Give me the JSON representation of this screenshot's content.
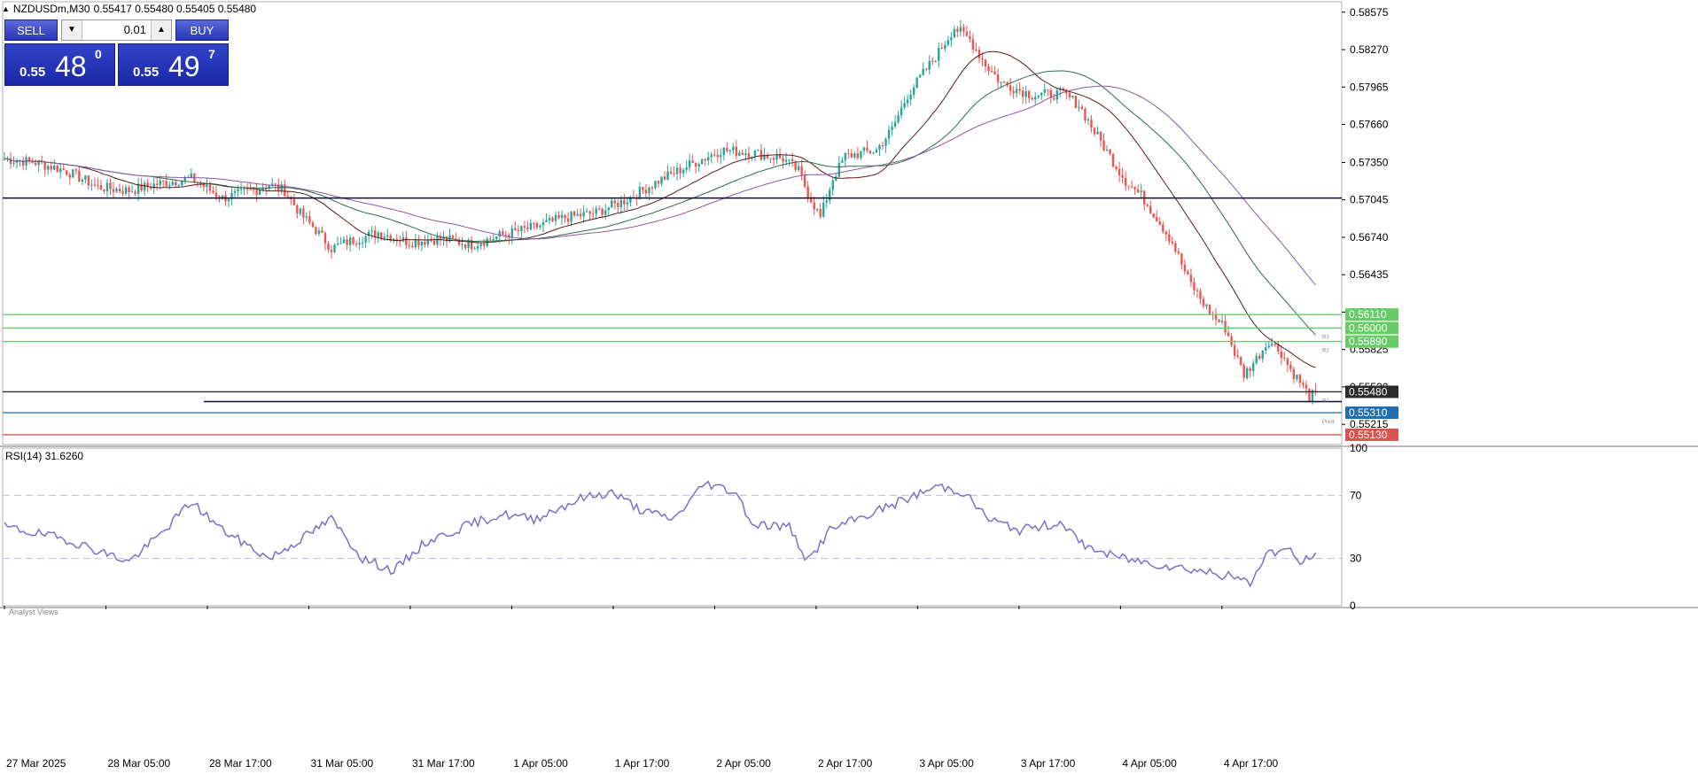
{
  "header": {
    "symbol": "NZDUSDm,M30",
    "ohlc": "0.55417 0.55480 0.55405 0.55480"
  },
  "trade_panel": {
    "sell_label": "SELL",
    "buy_label": "BUY",
    "lot": "0.01",
    "sell_price_small": "0.55",
    "sell_price_big": "48",
    "sell_price_sup": "0",
    "buy_price_small": "0.55",
    "buy_price_big": "49",
    "buy_price_sup": "7"
  },
  "price_axis": {
    "ticks": [
      "0.58575",
      "0.58270",
      "0.57965",
      "0.57660",
      "0.57350",
      "0.57045",
      "0.56740",
      "0.56435",
      "0.56130",
      "0.55825",
      "0.55520",
      "0.55215"
    ],
    "ylim": [
      0.5505,
      0.5866
    ]
  },
  "levels": [
    {
      "price": 0.5611,
      "label": "0.56110",
      "color": "#66cc66",
      "small_label": ""
    },
    {
      "price": 0.56,
      "label": "0.56000",
      "color": "#66cc66",
      "small_label": "R3"
    },
    {
      "price": 0.5589,
      "label": "0.55890",
      "color": "#66cc66",
      "small_label": "R2"
    },
    {
      "price": 0.5548,
      "label": "0.55480",
      "color": "#2b2b2b",
      "small_label": "R1"
    },
    {
      "price": 0.5531,
      "label": "0.55310",
      "color": "#1f6fb2",
      "small_label": "Pivot"
    },
    {
      "price": 0.5513,
      "label": "0.55130",
      "color": "#d9534f",
      "small_label": ""
    }
  ],
  "horizontal_lines": [
    {
      "price": 0.5706,
      "color": "#0a0a3a"
    },
    {
      "price": 0.554,
      "color": "#0a0a3a"
    }
  ],
  "time_axis": [
    "27 Mar 2025",
    "28 Mar 05:00",
    "28 Mar 17:00",
    "31 Mar 05:00",
    "31 Mar 17:00",
    "1 Apr 05:00",
    "1 Apr 17:00",
    "2 Apr 05:00",
    "2 Apr 17:00",
    "3 Apr 05:00",
    "3 Apr 17:00",
    "4 Apr 05:00",
    "4 Apr 17:00"
  ],
  "rsi": {
    "label": "RSI(14) 31.6260",
    "ticks": [
      "100",
      "70",
      "30",
      "0"
    ],
    "levels": [
      70,
      30
    ],
    "line_color": "#7b6fc9"
  },
  "footer_label": "Analyst Views",
  "chart_data": [
    {
      "type": "candlestick",
      "title": "NZDUSDm,M30",
      "close_path": [
        [
          0,
          0.5738
        ],
        [
          10,
          0.5735
        ],
        [
          20,
          0.5728
        ],
        [
          30,
          0.5715
        ],
        [
          40,
          0.5712
        ],
        [
          50,
          0.5718
        ],
        [
          60,
          0.5722
        ],
        [
          70,
          0.5706
        ],
        [
          80,
          0.5712
        ],
        [
          85,
          0.5717
        ],
        [
          90,
          0.5712
        ],
        [
          95,
          0.5693
        ],
        [
          100,
          0.568
        ],
        [
          105,
          0.5665
        ],
        [
          110,
          0.567
        ],
        [
          120,
          0.5678
        ],
        [
          130,
          0.567
        ],
        [
          140,
          0.5673
        ],
        [
          150,
          0.5668
        ],
        [
          160,
          0.5676
        ],
        [
          170,
          0.5682
        ],
        [
          180,
          0.569
        ],
        [
          190,
          0.5694
        ],
        [
          200,
          0.5705
        ],
        [
          210,
          0.572
        ],
        [
          220,
          0.5733
        ],
        [
          230,
          0.5745
        ],
        [
          240,
          0.5743
        ],
        [
          250,
          0.5738
        ],
        [
          255,
          0.5728
        ],
        [
          258,
          0.571
        ],
        [
          262,
          0.569
        ],
        [
          266,
          0.5722
        ],
        [
          270,
          0.574
        ],
        [
          280,
          0.5745
        ],
        [
          285,
          0.5762
        ],
        [
          290,
          0.579
        ],
        [
          300,
          0.5825
        ],
        [
          305,
          0.5845
        ],
        [
          310,
          0.5835
        ],
        [
          315,
          0.5815
        ],
        [
          320,
          0.58
        ],
        [
          330,
          0.579
        ],
        [
          340,
          0.5791
        ],
        [
          345,
          0.5782
        ],
        [
          350,
          0.576
        ],
        [
          355,
          0.574
        ],
        [
          360,
          0.572
        ],
        [
          365,
          0.5708
        ],
        [
          370,
          0.569
        ],
        [
          375,
          0.567
        ],
        [
          380,
          0.564
        ],
        [
          385,
          0.562
        ],
        [
          388,
          0.561
        ],
        [
          392,
          0.56
        ],
        [
          395,
          0.558
        ],
        [
          398,
          0.5562
        ],
        [
          402,
          0.5575
        ],
        [
          406,
          0.559
        ],
        [
          410,
          0.558
        ],
        [
          413,
          0.5566
        ],
        [
          416,
          0.5556
        ],
        [
          419,
          0.5544
        ],
        [
          422,
          0.5548
        ]
      ],
      "total_bars": 422
    },
    {
      "type": "line",
      "title": "RSI(14) 31.6260",
      "ylim": [
        0,
        100
      ],
      "series": [
        {
          "values": [
            [
              0,
              50
            ],
            [
              20,
              42
            ],
            [
              40,
              28
            ],
            [
              50,
              45
            ],
            [
              60,
              66
            ],
            [
              70,
              48
            ],
            [
              85,
              30
            ],
            [
              95,
              42
            ],
            [
              105,
              55
            ],
            [
              115,
              30
            ],
            [
              125,
              22
            ],
            [
              135,
              40
            ],
            [
              150,
              52
            ],
            [
              160,
              58
            ],
            [
              170,
              55
            ],
            [
              185,
              68
            ],
            [
              195,
              72
            ],
            [
              205,
              60
            ],
            [
              215,
              55
            ],
            [
              225,
              78
            ],
            [
              235,
              72
            ],
            [
              240,
              52
            ],
            [
              252,
              50
            ],
            [
              258,
              28
            ],
            [
              265,
              48
            ],
            [
              275,
              56
            ],
            [
              290,
              68
            ],
            [
              300,
              76
            ],
            [
              308,
              72
            ],
            [
              316,
              55
            ],
            [
              326,
              48
            ],
            [
              340,
              53
            ],
            [
              345,
              40
            ],
            [
              355,
              32
            ],
            [
              365,
              28
            ],
            [
              375,
              25
            ],
            [
              385,
              22
            ],
            [
              395,
              18
            ],
            [
              400,
              14
            ],
            [
              405,
              33
            ],
            [
              412,
              36
            ],
            [
              416,
              27
            ],
            [
              419,
              31
            ],
            [
              422,
              31.6
            ]
          ]
        }
      ]
    }
  ]
}
